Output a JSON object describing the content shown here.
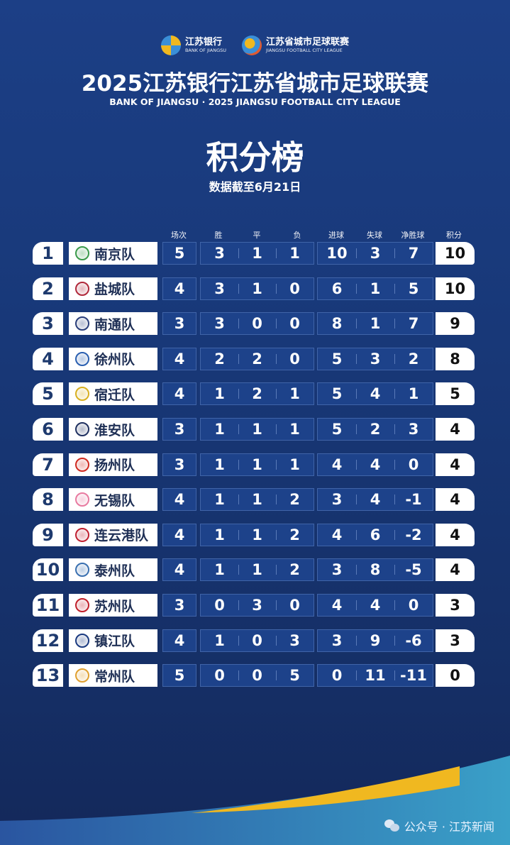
{
  "header": {
    "sponsor_logo": {
      "cn": "江苏银行",
      "en": "BANK OF JIANGSU"
    },
    "league_logo": {
      "cn": "江苏省城市足球联赛",
      "en": "JIANGSU FOOTBALL CITY LEAGUE"
    },
    "title": "2025江苏银行江苏省城市足球联赛",
    "subtitle": "BANK OF JIANGSU · 2025 JIANGSU FOOTBALL CITY LEAGUE",
    "heading": "积分榜",
    "date": "数据截至6月21日"
  },
  "columns": [
    "场次",
    "胜",
    "平",
    "负",
    "进球",
    "失球",
    "净胜球",
    "积分"
  ],
  "rows": [
    {
      "rank": "1",
      "team": "南京队",
      "color": "#3a9a4a",
      "played": "5",
      "w": "3",
      "d": "1",
      "l": "1",
      "gf": "10",
      "ga": "3",
      "gd": "7",
      "pts": "10"
    },
    {
      "rank": "2",
      "team": "盐城队",
      "color": "#b0283a",
      "played": "4",
      "w": "3",
      "d": "1",
      "l": "0",
      "gf": "6",
      "ga": "1",
      "gd": "5",
      "pts": "10"
    },
    {
      "rank": "3",
      "team": "南通队",
      "color": "#2a3e7a",
      "played": "3",
      "w": "3",
      "d": "0",
      "l": "0",
      "gf": "8",
      "ga": "1",
      "gd": "7",
      "pts": "9"
    },
    {
      "rank": "4",
      "team": "徐州队",
      "color": "#2a5fb0",
      "played": "4",
      "w": "2",
      "d": "2",
      "l": "0",
      "gf": "5",
      "ga": "3",
      "gd": "2",
      "pts": "8"
    },
    {
      "rank": "5",
      "team": "宿迁队",
      "color": "#d8b020",
      "played": "4",
      "w": "1",
      "d": "2",
      "l": "1",
      "gf": "5",
      "ga": "4",
      "gd": "1",
      "pts": "5"
    },
    {
      "rank": "6",
      "team": "淮安队",
      "color": "#1f3060",
      "played": "3",
      "w": "1",
      "d": "1",
      "l": "1",
      "gf": "5",
      "ga": "2",
      "gd": "3",
      "pts": "4"
    },
    {
      "rank": "7",
      "team": "扬州队",
      "color": "#d02a20",
      "played": "3",
      "w": "1",
      "d": "1",
      "l": "1",
      "gf": "4",
      "ga": "4",
      "gd": "0",
      "pts": "4"
    },
    {
      "rank": "8",
      "team": "无锡队",
      "color": "#e87aa0",
      "played": "4",
      "w": "1",
      "d": "1",
      "l": "2",
      "gf": "3",
      "ga": "4",
      "gd": "-1",
      "pts": "4"
    },
    {
      "rank": "9",
      "team": "连云港队",
      "color": "#c02030",
      "played": "4",
      "w": "1",
      "d": "1",
      "l": "2",
      "gf": "4",
      "ga": "6",
      "gd": "-2",
      "pts": "4"
    },
    {
      "rank": "10",
      "team": "泰州队",
      "color": "#3a70b0",
      "played": "4",
      "w": "1",
      "d": "1",
      "l": "2",
      "gf": "3",
      "ga": "8",
      "gd": "-5",
      "pts": "4"
    },
    {
      "rank": "11",
      "team": "苏州队",
      "color": "#c0202a",
      "played": "3",
      "w": "0",
      "d": "3",
      "l": "0",
      "gf": "4",
      "ga": "4",
      "gd": "0",
      "pts": "3"
    },
    {
      "rank": "12",
      "team": "镇江队",
      "color": "#1a3a80",
      "played": "4",
      "w": "1",
      "d": "0",
      "l": "3",
      "gf": "3",
      "ga": "9",
      "gd": "-6",
      "pts": "3"
    },
    {
      "rank": "13",
      "team": "常州队",
      "color": "#e0a030",
      "played": "5",
      "w": "0",
      "d": "0",
      "l": "5",
      "gf": "0",
      "ga": "11",
      "gd": "-11",
      "pts": "0"
    }
  ],
  "footer": {
    "credit": "公众号 · 江苏新闻",
    "accent": "#f0b820"
  }
}
